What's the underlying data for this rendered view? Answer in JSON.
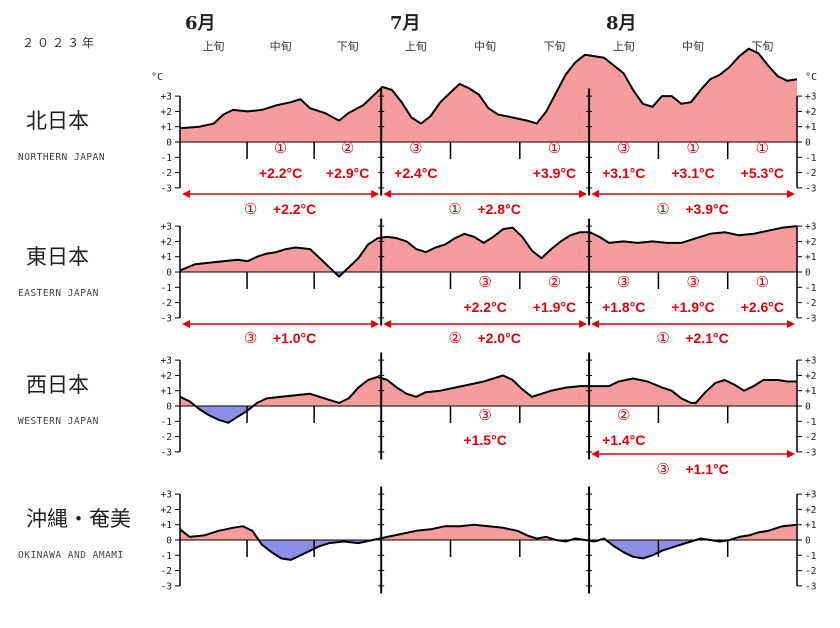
{
  "year_label": "２０２３年",
  "unit_label": "°C",
  "months": [
    "6月",
    "7月",
    "8月"
  ],
  "dekads": [
    "上旬",
    "中旬",
    "下旬"
  ],
  "colors": {
    "positive": "#f79c9c",
    "negative": "#8e8ee6",
    "line": "#000000",
    "annotation": "#e0000a",
    "axis": "#000000"
  },
  "chart_data": {
    "type": "area",
    "x_unit": "day (Jun 1 - Aug 31, 2023)",
    "y_unit": "°C",
    "ylim": [
      -3,
      3
    ],
    "yticks": [
      "+3",
      "+2",
      "+1",
      "0",
      "-1",
      "-2",
      "-3"
    ],
    "regions": [
      {
        "name_ja": "北日本",
        "name_en": "NORTHERN JAPAN",
        "series": [
          [
            0,
            0.9
          ],
          [
            4,
            1.0
          ],
          [
            7,
            1.2
          ],
          [
            9,
            1.8
          ],
          [
            11,
            2.1
          ],
          [
            14,
            2.0
          ],
          [
            17,
            2.1
          ],
          [
            20,
            2.4
          ],
          [
            23,
            2.6
          ],
          [
            25,
            2.8
          ],
          [
            27,
            2.2
          ],
          [
            30,
            1.9
          ],
          [
            33,
            1.4
          ],
          [
            35,
            1.9
          ],
          [
            38,
            2.4
          ],
          [
            40,
            3.0
          ],
          [
            42,
            3.6
          ],
          [
            44,
            3.4
          ],
          [
            46,
            2.6
          ],
          [
            48,
            1.6
          ],
          [
            50,
            1.2
          ],
          [
            52,
            1.7
          ],
          [
            54,
            2.6
          ],
          [
            56,
            3.2
          ],
          [
            58,
            3.8
          ],
          [
            60,
            3.5
          ],
          [
            62,
            3.1
          ],
          [
            64,
            2.2
          ],
          [
            66,
            1.8
          ],
          [
            69,
            1.6
          ],
          [
            72,
            1.4
          ],
          [
            74,
            1.2
          ],
          [
            76,
            2.0
          ],
          [
            78,
            3.2
          ],
          [
            80,
            4.4
          ],
          [
            82,
            5.2
          ],
          [
            84,
            5.7
          ],
          [
            86,
            5.6
          ],
          [
            88,
            5.5
          ],
          [
            90,
            5.0
          ],
          [
            92,
            4.5
          ],
          [
            94,
            3.4
          ],
          [
            96,
            2.5
          ],
          [
            98,
            2.3
          ],
          [
            100,
            3.0
          ],
          [
            102,
            3.0
          ],
          [
            104,
            2.5
          ],
          [
            106,
            2.6
          ],
          [
            108,
            3.4
          ],
          [
            110,
            4.1
          ],
          [
            112,
            4.4
          ],
          [
            114,
            4.9
          ],
          [
            116,
            5.6
          ],
          [
            118,
            6.1
          ],
          [
            120,
            5.8
          ],
          [
            122,
            5.0
          ],
          [
            124,
            4.3
          ],
          [
            126,
            4.0
          ],
          [
            128,
            4.1
          ]
        ],
        "annotations": [
          {
            "col": 1,
            "rank": "①",
            "value": "+2.2°C"
          },
          {
            "col": 2,
            "rank": "②",
            "value": "+2.9°C"
          },
          {
            "col": 3,
            "rank": "③",
            "value": "+2.4°C"
          },
          {
            "col": 5,
            "rank": "①",
            "value": "+3.9°C"
          },
          {
            "col": 6,
            "rank": "③",
            "value": "+3.1°C"
          },
          {
            "col": 7,
            "rank": "①",
            "value": "+3.1°C"
          },
          {
            "col": 8,
            "rank": "①",
            "value": "+5.3°C"
          }
        ],
        "monthly": [
          {
            "month": 0,
            "rank": "①",
            "value": "+2.2°C"
          },
          {
            "month": 1,
            "rank": "①",
            "value": "+2.8°C"
          },
          {
            "month": 2,
            "rank": "①",
            "value": "+3.9°C"
          }
        ]
      },
      {
        "name_ja": "東日本",
        "name_en": "EASTERN JAPAN",
        "series": [
          [
            0,
            0.1
          ],
          [
            3,
            0.5
          ],
          [
            6,
            0.6
          ],
          [
            9,
            0.7
          ],
          [
            12,
            0.8
          ],
          [
            14,
            0.7
          ],
          [
            16,
            1.0
          ],
          [
            18,
            1.2
          ],
          [
            20,
            1.3
          ],
          [
            22,
            1.5
          ],
          [
            24,
            1.6
          ],
          [
            27,
            1.5
          ],
          [
            29,
            0.9
          ],
          [
            31,
            0.3
          ],
          [
            33,
            -0.3
          ],
          [
            35,
            0.3
          ],
          [
            37,
            0.9
          ],
          [
            39,
            1.8
          ],
          [
            41,
            2.2
          ],
          [
            43,
            2.3
          ],
          [
            45,
            2.2
          ],
          [
            47,
            2.0
          ],
          [
            49,
            1.5
          ],
          [
            51,
            1.3
          ],
          [
            53,
            1.6
          ],
          [
            55,
            1.8
          ],
          [
            57,
            2.2
          ],
          [
            59,
            2.5
          ],
          [
            61,
            2.3
          ],
          [
            63,
            1.9
          ],
          [
            65,
            2.3
          ],
          [
            67,
            2.8
          ],
          [
            69,
            2.9
          ],
          [
            71,
            2.3
          ],
          [
            73,
            1.4
          ],
          [
            75,
            0.9
          ],
          [
            77,
            1.5
          ],
          [
            79,
            2.0
          ],
          [
            81,
            2.4
          ],
          [
            83,
            2.6
          ],
          [
            85,
            2.6
          ],
          [
            87,
            2.3
          ],
          [
            89,
            1.9
          ],
          [
            92,
            2.0
          ],
          [
            95,
            1.9
          ],
          [
            98,
            2.0
          ],
          [
            101,
            1.9
          ],
          [
            104,
            1.9
          ],
          [
            107,
            2.2
          ],
          [
            110,
            2.5
          ],
          [
            113,
            2.6
          ],
          [
            116,
            2.4
          ],
          [
            119,
            2.5
          ],
          [
            122,
            2.7
          ],
          [
            125,
            2.9
          ],
          [
            128,
            3.0
          ]
        ],
        "annotations": [
          {
            "col": 4,
            "rank": "③",
            "value": "+2.2°C"
          },
          {
            "col": 5,
            "rank": "②",
            "value": "+1.9°C"
          },
          {
            "col": 6,
            "rank": "③",
            "value": "+1.8°C"
          },
          {
            "col": 7,
            "rank": "③",
            "value": "+1.9°C"
          },
          {
            "col": 8,
            "rank": "①",
            "value": "+2.6°C"
          }
        ],
        "monthly": [
          {
            "month": 0,
            "rank": "③",
            "value": "+1.0°C"
          },
          {
            "month": 1,
            "rank": "②",
            "value": "+2.0°C"
          },
          {
            "month": 2,
            "rank": "①",
            "value": "+2.1°C"
          }
        ]
      },
      {
        "name_ja": "西日本",
        "name_en": "WESTERN JAPAN",
        "series": [
          [
            0,
            0.6
          ],
          [
            2,
            0.3
          ],
          [
            4,
            -0.2
          ],
          [
            6,
            -0.6
          ],
          [
            8,
            -0.9
          ],
          [
            10,
            -1.1
          ],
          [
            12,
            -0.7
          ],
          [
            14,
            -0.3
          ],
          [
            16,
            0.2
          ],
          [
            18,
            0.5
          ],
          [
            21,
            0.6
          ],
          [
            24,
            0.7
          ],
          [
            27,
            0.8
          ],
          [
            30,
            0.5
          ],
          [
            33,
            0.2
          ],
          [
            35,
            0.5
          ],
          [
            37,
            1.2
          ],
          [
            39,
            1.7
          ],
          [
            41,
            1.9
          ],
          [
            43,
            1.7
          ],
          [
            45,
            1.2
          ],
          [
            47,
            0.8
          ],
          [
            49,
            0.6
          ],
          [
            51,
            0.9
          ],
          [
            54,
            1.0
          ],
          [
            57,
            1.2
          ],
          [
            60,
            1.4
          ],
          [
            63,
            1.6
          ],
          [
            65,
            1.8
          ],
          [
            67,
            2.0
          ],
          [
            69,
            1.7
          ],
          [
            71,
            1.1
          ],
          [
            73,
            0.6
          ],
          [
            75,
            0.8
          ],
          [
            77,
            1.0
          ],
          [
            80,
            1.2
          ],
          [
            83,
            1.3
          ],
          [
            86,
            1.3
          ],
          [
            89,
            1.3
          ],
          [
            91,
            1.6
          ],
          [
            94,
            1.8
          ],
          [
            97,
            1.6
          ],
          [
            100,
            1.2
          ],
          [
            102,
            1.0
          ],
          [
            104,
            0.5
          ],
          [
            106,
            0.2
          ],
          [
            107,
            0.2
          ],
          [
            109,
            0.9
          ],
          [
            111,
            1.5
          ],
          [
            113,
            1.7
          ],
          [
            115,
            1.4
          ],
          [
            117,
            1.0
          ],
          [
            119,
            1.3
          ],
          [
            121,
            1.7
          ],
          [
            124,
            1.7
          ],
          [
            126,
            1.6
          ],
          [
            128,
            1.6
          ]
        ],
        "annotations": [
          {
            "col": 4,
            "rank": "③",
            "value": "+1.5°C"
          },
          {
            "col": 6,
            "rank": "②",
            "value": "+1.4°C"
          }
        ],
        "monthly": [
          {
            "month": 2,
            "rank": "③",
            "value": "+1.1°C"
          }
        ]
      },
      {
        "name_ja": "沖縄・奄美",
        "name_en": "OKINAWA AND AMAMI",
        "series": [
          [
            0,
            0.7
          ],
          [
            2,
            0.2
          ],
          [
            5,
            0.3
          ],
          [
            8,
            0.6
          ],
          [
            11,
            0.8
          ],
          [
            13,
            0.9
          ],
          [
            15,
            0.6
          ],
          [
            17,
            -0.3
          ],
          [
            19,
            -0.8
          ],
          [
            21,
            -1.2
          ],
          [
            23,
            -1.3
          ],
          [
            25,
            -1.0
          ],
          [
            27,
            -0.7
          ],
          [
            29,
            -0.4
          ],
          [
            31,
            -0.2
          ],
          [
            34,
            -0.1
          ],
          [
            37,
            -0.2
          ],
          [
            40,
            0.0
          ],
          [
            43,
            0.2
          ],
          [
            46,
            0.4
          ],
          [
            49,
            0.6
          ],
          [
            52,
            0.7
          ],
          [
            55,
            0.9
          ],
          [
            58,
            0.9
          ],
          [
            61,
            1.0
          ],
          [
            64,
            0.9
          ],
          [
            67,
            0.8
          ],
          [
            70,
            0.6
          ],
          [
            72,
            0.3
          ],
          [
            74,
            0.1
          ],
          [
            76,
            0.2
          ],
          [
            78,
            0.0
          ],
          [
            80,
            -0.1
          ],
          [
            82,
            0.1
          ],
          [
            84,
            0.0
          ],
          [
            86,
            -0.1
          ],
          [
            88,
            0.1
          ],
          [
            90,
            -0.4
          ],
          [
            92,
            -0.8
          ],
          [
            94,
            -1.1
          ],
          [
            96,
            -1.2
          ],
          [
            98,
            -1.0
          ],
          [
            100,
            -0.7
          ],
          [
            102,
            -0.5
          ],
          [
            104,
            -0.3
          ],
          [
            106,
            -0.1
          ],
          [
            108,
            0.1
          ],
          [
            110,
            0.0
          ],
          [
            112,
            -0.1
          ],
          [
            114,
            0.0
          ],
          [
            116,
            0.2
          ],
          [
            118,
            0.3
          ],
          [
            120,
            0.5
          ],
          [
            122,
            0.6
          ],
          [
            125,
            0.9
          ],
          [
            128,
            1.0
          ]
        ],
        "annotations": [],
        "monthly": []
      }
    ]
  }
}
